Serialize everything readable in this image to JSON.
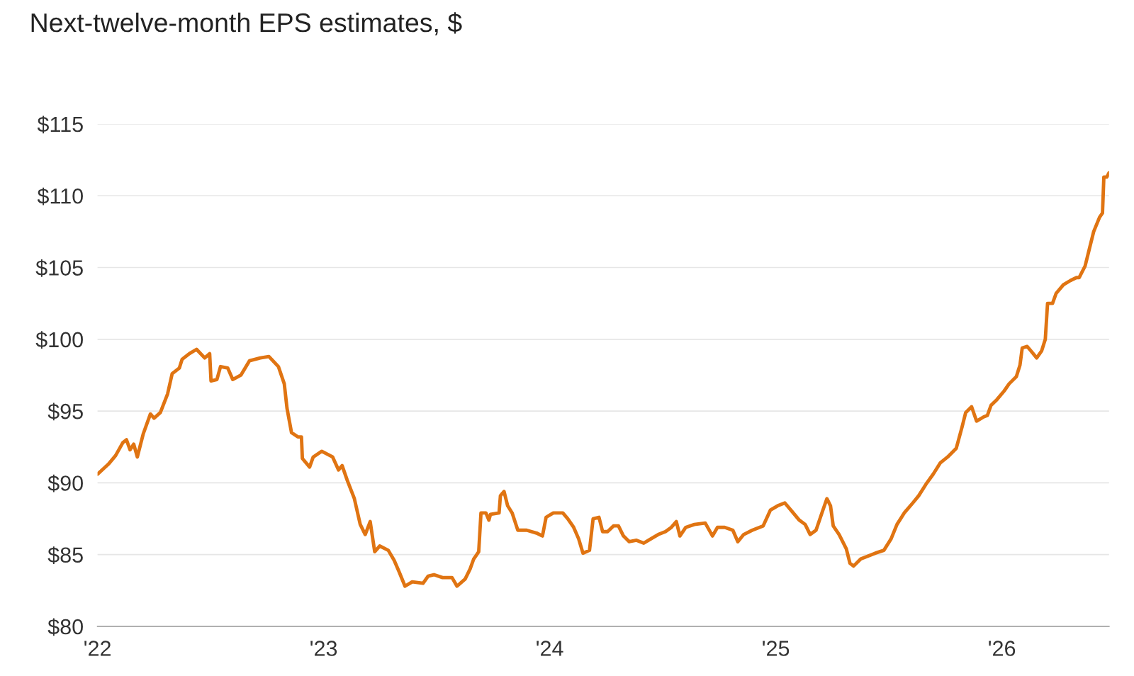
{
  "chart_data": {
    "type": "line",
    "title": "Next-twelve-month EPS estimates, $",
    "x": [
      2022.0,
      2022.048,
      2022.08,
      2022.112,
      2022.128,
      2022.144,
      2022.16,
      2022.176,
      2022.202,
      2022.234,
      2022.25,
      2022.278,
      2022.31,
      2022.33,
      2022.362,
      2022.374,
      2022.406,
      2022.438,
      2022.474,
      2022.496,
      2022.502,
      2022.528,
      2022.544,
      2022.576,
      2022.598,
      2022.634,
      2022.672,
      2022.72,
      2022.758,
      2022.8,
      2022.826,
      2022.838,
      2022.858,
      2022.886,
      2022.902,
      2022.906,
      2022.938,
      2022.954,
      2022.992,
      2023.04,
      2023.066,
      2023.082,
      2023.104,
      2023.136,
      2023.162,
      2023.184,
      2023.206,
      2023.226,
      2023.248,
      2023.286,
      2023.312,
      2023.334,
      2023.36,
      2023.392,
      2023.44,
      2023.462,
      2023.488,
      2023.526,
      2023.568,
      2023.59,
      2023.626,
      2023.648,
      2023.664,
      2023.686,
      2023.696,
      2023.718,
      2023.731,
      2023.738,
      2023.776,
      2023.782,
      2023.798,
      2023.814,
      2023.834,
      2023.859,
      2023.898,
      2023.942,
      2023.968,
      2023.984,
      2024.016,
      2024.058,
      2024.08,
      2024.106,
      2024.128,
      2024.147,
      2024.176,
      2024.192,
      2024.218,
      2024.234,
      2024.256,
      2024.282,
      2024.304,
      2024.326,
      2024.352,
      2024.384,
      2024.416,
      2024.448,
      2024.48,
      2024.512,
      2024.538,
      2024.56,
      2024.576,
      2024.602,
      2024.64,
      2024.688,
      2024.72,
      2024.742,
      2024.774,
      2024.81,
      2024.832,
      2024.858,
      2024.896,
      2024.944,
      2024.976,
      2025.008,
      2025.04,
      2025.072,
      2025.104,
      2025.13,
      2025.152,
      2025.178,
      2025.206,
      2025.226,
      2025.242,
      2025.254,
      2025.28,
      2025.312,
      2025.328,
      2025.344,
      2025.376,
      2025.408,
      2025.44,
      2025.478,
      2025.51,
      2025.536,
      2025.568,
      2025.606,
      2025.632,
      2025.664,
      2025.696,
      2025.728,
      2025.76,
      2025.798,
      2025.824,
      2025.84,
      2025.866,
      2025.888,
      2025.92,
      2025.936,
      2025.952,
      2025.978,
      2026.01,
      2026.032,
      2026.064,
      2026.08,
      2026.09,
      2026.112,
      2026.128,
      2026.154,
      2026.176,
      2026.192,
      2026.202,
      2026.224,
      2026.24,
      2026.272,
      2026.304,
      2026.33,
      2026.342,
      2026.368,
      2026.387,
      2026.406,
      2026.432,
      2026.445,
      2026.451,
      2026.464,
      2026.474
    ],
    "series": [
      {
        "color": "#e07412",
        "values": [
          90.6,
          91.3,
          91.9,
          92.8,
          93.0,
          92.3,
          92.7,
          91.8,
          93.4,
          94.8,
          94.5,
          94.9,
          96.2,
          97.6,
          98.0,
          98.6,
          99.0,
          99.3,
          98.7,
          99.0,
          97.1,
          97.2,
          98.1,
          98.0,
          97.2,
          97.5,
          98.5,
          98.7,
          98.8,
          98.1,
          96.9,
          95.2,
          93.5,
          93.2,
          93.2,
          91.7,
          91.1,
          91.8,
          92.2,
          91.8,
          90.9,
          91.2,
          90.2,
          88.9,
          87.1,
          86.4,
          87.3,
          85.2,
          85.6,
          85.3,
          84.6,
          83.8,
          82.8,
          83.1,
          83.0,
          83.5,
          83.6,
          83.4,
          83.4,
          82.8,
          83.3,
          84.0,
          84.7,
          85.2,
          87.9,
          87.9,
          87.4,
          87.8,
          87.9,
          89.1,
          89.4,
          88.4,
          87.9,
          86.7,
          86.7,
          86.5,
          86.3,
          87.6,
          87.9,
          87.9,
          87.5,
          86.9,
          86.1,
          85.1,
          85.3,
          87.5,
          87.6,
          86.6,
          86.6,
          87.0,
          87.0,
          86.3,
          85.9,
          86.0,
          85.8,
          86.1,
          86.4,
          86.6,
          86.9,
          87.3,
          86.3,
          86.9,
          87.1,
          87.2,
          86.3,
          86.9,
          86.9,
          86.7,
          85.9,
          86.4,
          86.7,
          87.0,
          88.1,
          88.4,
          88.6,
          88.0,
          87.4,
          87.1,
          86.4,
          86.7,
          88.0,
          88.9,
          88.4,
          87.0,
          86.4,
          85.4,
          84.4,
          84.2,
          84.7,
          84.9,
          85.1,
          85.3,
          86.1,
          87.1,
          87.9,
          88.6,
          89.1,
          89.9,
          90.6,
          91.4,
          91.8,
          92.4,
          93.9,
          94.9,
          95.3,
          94.3,
          94.6,
          94.7,
          95.4,
          95.8,
          96.4,
          96.9,
          97.4,
          98.2,
          99.4,
          99.5,
          99.2,
          98.7,
          99.2,
          100.0,
          102.5,
          102.5,
          103.2,
          103.8,
          104.1,
          104.3,
          104.3,
          105.1,
          106.3,
          107.5,
          108.5,
          108.8,
          111.3,
          111.3,
          111.6
        ]
      }
    ],
    "xlim": [
      2022.0,
      2026.474
    ],
    "xticks": [
      {
        "value": 2022,
        "label": "'22"
      },
      {
        "value": 2023,
        "label": "'23"
      },
      {
        "value": 2024,
        "label": "'24"
      },
      {
        "value": 2025,
        "label": "'25"
      },
      {
        "value": 2026,
        "label": "'26"
      }
    ],
    "ylim": [
      80,
      115
    ],
    "yticks": [
      {
        "value": 80,
        "label": "$80"
      },
      {
        "value": 85,
        "label": "$85"
      },
      {
        "value": 90,
        "label": "$90"
      },
      {
        "value": 95,
        "label": "$95"
      },
      {
        "value": 100,
        "label": "$100"
      },
      {
        "value": 105,
        "label": "$105"
      },
      {
        "value": 110,
        "label": "$110"
      },
      {
        "value": 115,
        "label": "$115"
      }
    ],
    "grid": "y"
  }
}
